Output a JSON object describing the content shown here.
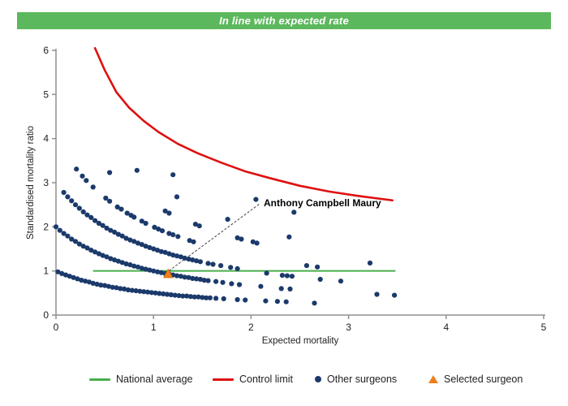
{
  "banner": {
    "text": "In line with expected rate",
    "bg_color": "#5CB85C",
    "text_color": "#FFFFFF"
  },
  "colors": {
    "banner_green": "#5CB85C",
    "national_average_green": "#4AAE4C",
    "control_limit_red": "#DE1010",
    "other_surgeons_navy": "#1B3A6B",
    "selected_surgeon_orange": "#EE7F1A",
    "axis_gray": "#909090",
    "text_dark": "#222222"
  },
  "chart_data": {
    "type": "scatter",
    "xlabel": "Expected mortality",
    "ylabel": "Standardised mortality ratio",
    "xlim": [
      0,
      5
    ],
    "ylim": [
      0,
      6
    ],
    "x_ticks": [
      0,
      1,
      2,
      3,
      4,
      5
    ],
    "y_ticks": [
      0,
      1,
      2,
      3,
      4,
      5,
      6
    ],
    "grid": false,
    "legend_position": "bottom",
    "national_average": {
      "y": 1.0,
      "x_start": 0.38,
      "x_end": 3.48
    },
    "control_limit": {
      "points": [
        [
          0.4,
          6.05
        ],
        [
          0.5,
          5.55
        ],
        [
          0.62,
          5.05
        ],
        [
          0.75,
          4.7
        ],
        [
          0.9,
          4.4
        ],
        [
          1.05,
          4.15
        ],
        [
          1.25,
          3.88
        ],
        [
          1.45,
          3.67
        ],
        [
          1.7,
          3.45
        ],
        [
          1.95,
          3.25
        ],
        [
          2.2,
          3.1
        ],
        [
          2.5,
          2.93
        ],
        [
          2.8,
          2.8
        ],
        [
          3.1,
          2.7
        ],
        [
          3.45,
          2.6
        ]
      ]
    },
    "selected_surgeon": {
      "label": "Anthony Campbell Maury",
      "point": [
        1.15,
        0.93
      ],
      "label_pos": [
        2.13,
        2.54
      ],
      "marker": "triangle"
    },
    "other_surgeons": {
      "marker": "circle",
      "points": [
        [
          0.02,
          0.98
        ],
        [
          0.06,
          0.94
        ],
        [
          0.1,
          0.91
        ],
        [
          0.14,
          0.88
        ],
        [
          0.18,
          0.85
        ],
        [
          0.22,
          0.82
        ],
        [
          0.26,
          0.79
        ],
        [
          0.3,
          0.77
        ],
        [
          0.34,
          0.75
        ],
        [
          0.38,
          0.72
        ],
        [
          0.42,
          0.7
        ],
        [
          0.46,
          0.68
        ],
        [
          0.5,
          0.67
        ],
        [
          0.54,
          0.65
        ],
        [
          0.58,
          0.63
        ],
        [
          0.62,
          0.62
        ],
        [
          0.66,
          0.6
        ],
        [
          0.7,
          0.59
        ],
        [
          0.74,
          0.57
        ],
        [
          0.78,
          0.56
        ],
        [
          0.82,
          0.55
        ],
        [
          0.86,
          0.54
        ],
        [
          0.9,
          0.53
        ],
        [
          0.94,
          0.52
        ],
        [
          0.98,
          0.51
        ],
        [
          1.02,
          0.5
        ],
        [
          1.06,
          0.49
        ],
        [
          1.1,
          0.48
        ],
        [
          1.14,
          0.47
        ],
        [
          1.18,
          0.46
        ],
        [
          1.22,
          0.45
        ],
        [
          1.26,
          0.44
        ],
        [
          1.3,
          0.43
        ],
        [
          1.34,
          0.43
        ],
        [
          1.38,
          0.42
        ],
        [
          1.42,
          0.41
        ],
        [
          1.46,
          0.41
        ],
        [
          1.5,
          0.4
        ],
        [
          1.54,
          0.39
        ],
        [
          1.58,
          0.39
        ],
        [
          1.64,
          0.38
        ],
        [
          1.72,
          0.37
        ],
        [
          1.86,
          0.35
        ],
        [
          1.94,
          0.34
        ],
        [
          2.15,
          0.32
        ],
        [
          2.27,
          0.31
        ],
        [
          2.36,
          0.3
        ],
        [
          2.65,
          0.27
        ],
        [
          0.0,
          2.0
        ],
        [
          0.04,
          1.92
        ],
        [
          0.08,
          1.85
        ],
        [
          0.12,
          1.79
        ],
        [
          0.16,
          1.72
        ],
        [
          0.2,
          1.67
        ],
        [
          0.24,
          1.61
        ],
        [
          0.28,
          1.56
        ],
        [
          0.32,
          1.52
        ],
        [
          0.36,
          1.47
        ],
        [
          0.4,
          1.43
        ],
        [
          0.44,
          1.39
        ],
        [
          0.48,
          1.35
        ],
        [
          0.52,
          1.32
        ],
        [
          0.56,
          1.28
        ],
        [
          0.6,
          1.25
        ],
        [
          0.64,
          1.22
        ],
        [
          0.68,
          1.19
        ],
        [
          0.72,
          1.16
        ],
        [
          0.76,
          1.14
        ],
        [
          0.8,
          1.11
        ],
        [
          0.84,
          1.09
        ],
        [
          0.88,
          1.06
        ],
        [
          0.92,
          1.04
        ],
        [
          0.96,
          1.02
        ],
        [
          1.0,
          1.0
        ],
        [
          1.04,
          0.98
        ],
        [
          1.08,
          0.96
        ],
        [
          1.12,
          0.94
        ],
        [
          1.16,
          0.93
        ],
        [
          1.2,
          0.91
        ],
        [
          1.24,
          0.89
        ],
        [
          1.28,
          0.88
        ],
        [
          1.32,
          0.86
        ],
        [
          1.36,
          0.85
        ],
        [
          1.4,
          0.83
        ],
        [
          1.44,
          0.82
        ],
        [
          1.48,
          0.81
        ],
        [
          1.52,
          0.79
        ],
        [
          1.56,
          0.78
        ],
        [
          1.64,
          0.76
        ],
        [
          1.71,
          0.74
        ],
        [
          1.8,
          0.71
        ],
        [
          1.88,
          0.69
        ],
        [
          2.1,
          0.65
        ],
        [
          2.31,
          0.6
        ],
        [
          2.4,
          0.59
        ],
        [
          3.29,
          0.47
        ],
        [
          3.47,
          0.45
        ],
        [
          0.08,
          2.78
        ],
        [
          0.12,
          2.68
        ],
        [
          0.16,
          2.59
        ],
        [
          0.2,
          2.5
        ],
        [
          0.24,
          2.42
        ],
        [
          0.28,
          2.34
        ],
        [
          0.32,
          2.27
        ],
        [
          0.36,
          2.21
        ],
        [
          0.4,
          2.14
        ],
        [
          0.44,
          2.08
        ],
        [
          0.48,
          2.03
        ],
        [
          0.52,
          1.97
        ],
        [
          0.56,
          1.92
        ],
        [
          0.6,
          1.88
        ],
        [
          0.64,
          1.83
        ],
        [
          0.68,
          1.79
        ],
        [
          0.72,
          1.74
        ],
        [
          0.76,
          1.7
        ],
        [
          0.8,
          1.67
        ],
        [
          0.84,
          1.63
        ],
        [
          0.88,
          1.6
        ],
        [
          0.92,
          1.56
        ],
        [
          0.96,
          1.53
        ],
        [
          1.0,
          1.5
        ],
        [
          1.04,
          1.47
        ],
        [
          1.08,
          1.44
        ],
        [
          1.12,
          1.42
        ],
        [
          1.16,
          1.39
        ],
        [
          1.2,
          1.36
        ],
        [
          1.24,
          1.34
        ],
        [
          1.28,
          1.32
        ],
        [
          1.32,
          1.29
        ],
        [
          1.36,
          1.27
        ],
        [
          1.4,
          1.25
        ],
        [
          1.44,
          1.23
        ],
        [
          1.48,
          1.21
        ],
        [
          1.56,
          1.17
        ],
        [
          1.61,
          1.15
        ],
        [
          1.69,
          1.12
        ],
        [
          1.79,
          1.08
        ],
        [
          1.86,
          1.05
        ],
        [
          2.16,
          0.95
        ],
        [
          2.32,
          0.9
        ],
        [
          2.37,
          0.89
        ],
        [
          2.42,
          0.88
        ],
        [
          2.71,
          0.81
        ],
        [
          2.92,
          0.77
        ],
        [
          0.21,
          3.31
        ],
        [
          0.27,
          3.15
        ],
        [
          0.31,
          3.05
        ],
        [
          0.38,
          2.9
        ],
        [
          0.51,
          2.65
        ],
        [
          0.55,
          2.58
        ],
        [
          0.63,
          2.45
        ],
        [
          0.67,
          2.4
        ],
        [
          0.73,
          2.31
        ],
        [
          0.77,
          2.26
        ],
        [
          0.8,
          2.22
        ],
        [
          0.88,
          2.13
        ],
        [
          0.92,
          2.08
        ],
        [
          1.01,
          1.99
        ],
        [
          1.05,
          1.95
        ],
        [
          1.09,
          1.91
        ],
        [
          1.16,
          1.85
        ],
        [
          1.2,
          1.82
        ],
        [
          1.25,
          1.78
        ],
        [
          1.37,
          1.69
        ],
        [
          1.41,
          1.66
        ],
        [
          2.57,
          1.12
        ],
        [
          2.68,
          1.09
        ],
        [
          0.55,
          3.23
        ],
        [
          1.12,
          2.36
        ],
        [
          1.16,
          2.31
        ],
        [
          1.43,
          2.06
        ],
        [
          1.47,
          2.02
        ],
        [
          1.86,
          1.75
        ],
        [
          1.9,
          1.72
        ],
        [
          2.02,
          1.66
        ],
        [
          2.06,
          1.63
        ],
        [
          3.22,
          1.18
        ],
        [
          0.83,
          3.28
        ],
        [
          1.24,
          2.68
        ],
        [
          1.76,
          2.17
        ],
        [
          2.39,
          1.77
        ],
        [
          1.2,
          3.18
        ],
        [
          2.05,
          2.62
        ],
        [
          2.44,
          2.33
        ]
      ]
    }
  },
  "legend": {
    "items": [
      {
        "label": "National average",
        "marker": "line",
        "color": "#4AAE4C"
      },
      {
        "label": "Control limit",
        "marker": "line",
        "color": "#DE1010"
      },
      {
        "label": "Other surgeons",
        "marker": "circle",
        "color": "#1B3A6B"
      },
      {
        "label": "Selected surgeon",
        "marker": "triangle",
        "color": "#EE7F1A"
      }
    ]
  }
}
